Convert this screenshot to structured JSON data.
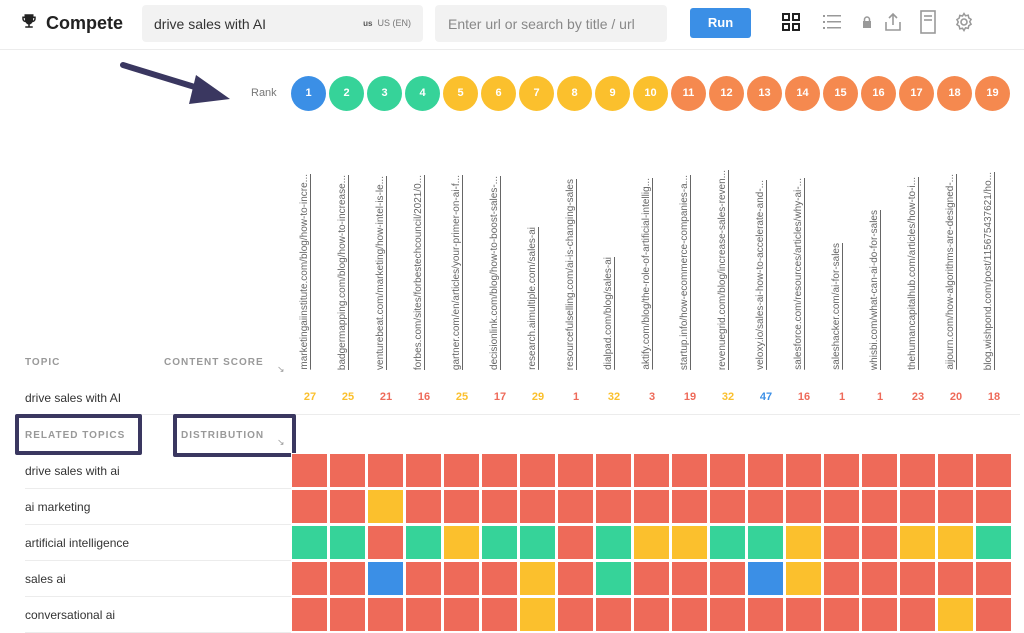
{
  "app": {
    "title": "Compete"
  },
  "search": {
    "keyword": "drive sales with AI",
    "locale": "US (EN)",
    "url_placeholder": "Enter url or search by title / url",
    "run_label": "Run"
  },
  "icons": [
    "trophy-icon",
    "grid-view-icon",
    "list-view-icon",
    "lock-icon",
    "share-icon",
    "document-icon",
    "settings-icon"
  ],
  "colors": {
    "blue": "#3b8fe6",
    "green": "#36d399",
    "yellow": "#fbc02d",
    "orange": "#f5894f",
    "red": "#ee6a59"
  },
  "rank_label": "Rank",
  "ranks": [
    {
      "rank": "1",
      "color": "blue",
      "url": "marketingaiinstitute.com/blog/how-to-incre...",
      "score": "27",
      "score_color": "yellow"
    },
    {
      "rank": "2",
      "color": "green",
      "url": "badgermapping.com/blog/how-to-increase...",
      "score": "25",
      "score_color": "yellow"
    },
    {
      "rank": "3",
      "color": "green",
      "url": "venturebeat.com/marketing/how-intel-is-le...",
      "score": "21",
      "score_color": "red"
    },
    {
      "rank": "4",
      "color": "green",
      "url": "forbes.com/sites/forbestechcouncil/2021/0...",
      "score": "16",
      "score_color": "red"
    },
    {
      "rank": "5",
      "color": "yellow",
      "url": "gartner.com/en/articles/your-primer-on-ai-f...",
      "score": "25",
      "score_color": "yellow"
    },
    {
      "rank": "6",
      "color": "yellow",
      "url": "decisionlink.com/blog/how-to-boost-sales-...",
      "score": "17",
      "score_color": "red"
    },
    {
      "rank": "7",
      "color": "yellow",
      "url": "research.aimultiple.com/sales-ai",
      "score": "29",
      "score_color": "yellow"
    },
    {
      "rank": "8",
      "color": "yellow",
      "url": "resourcefulselling.com/ai-is-changing-sales",
      "score": "1",
      "score_color": "red"
    },
    {
      "rank": "9",
      "color": "yellow",
      "url": "dialpad.com/blog/sales-ai",
      "score": "32",
      "score_color": "yellow"
    },
    {
      "rank": "10",
      "color": "yellow",
      "url": "aktify.com/blog/the-role-of-artificial-intellig...",
      "score": "3",
      "score_color": "red"
    },
    {
      "rank": "11",
      "color": "orange",
      "url": "startup.info/how-ecommerce-companies-a...",
      "score": "19",
      "score_color": "red"
    },
    {
      "rank": "12",
      "color": "orange",
      "url": "revenuegrid.com/blog/increase-sales-reven...",
      "score": "32",
      "score_color": "yellow"
    },
    {
      "rank": "13",
      "color": "orange",
      "url": "veloxy.io/sales-ai-how-to-accelerate-and-...",
      "score": "47",
      "score_color": "blue"
    },
    {
      "rank": "14",
      "color": "orange",
      "url": "salesforce.com/resources/articles/why-ai-...",
      "score": "16",
      "score_color": "red"
    },
    {
      "rank": "15",
      "color": "orange",
      "url": "saleshacker.com/ai-for-sales",
      "score": "1",
      "score_color": "red"
    },
    {
      "rank": "16",
      "color": "orange",
      "url": "whisbi.com/what-can-ai-do-for-sales",
      "score": "1",
      "score_color": "red"
    },
    {
      "rank": "17",
      "color": "orange",
      "url": "thehumancapitalhub.com/articles/how-to-i...",
      "score": "23",
      "score_color": "red"
    },
    {
      "rank": "18",
      "color": "orange",
      "url": "aijourn.com/how-algorithms-are-designed-...",
      "score": "20",
      "score_color": "red"
    },
    {
      "rank": "19",
      "color": "orange",
      "url": "blog.wishpond.com/post/115675437621/ho...",
      "score": "18",
      "score_color": "red"
    }
  ],
  "table": {
    "topic_header": "TOPIC",
    "content_score_header": "CONTENT SCORE",
    "keyword_row_label": "drive sales with AI",
    "related_topics_header": "RELATED TOPICS",
    "distribution_header": "DISTRIBUTION",
    "sort_glyph": "↘"
  },
  "related_topics": [
    {
      "label": "drive sales with ai",
      "cells": [
        "r",
        "r",
        "r",
        "r",
        "r",
        "r",
        "r",
        "r",
        "r",
        "r",
        "r",
        "r",
        "r",
        "r",
        "r",
        "r",
        "r",
        "r",
        "r"
      ]
    },
    {
      "label": "ai marketing",
      "cells": [
        "r",
        "r",
        "y",
        "r",
        "r",
        "r",
        "r",
        "r",
        "r",
        "r",
        "r",
        "r",
        "r",
        "r",
        "r",
        "r",
        "r",
        "r",
        "r"
      ]
    },
    {
      "label": "artificial intelligence",
      "cells": [
        "g",
        "g",
        "r",
        "g",
        "y",
        "g",
        "g",
        "r",
        "g",
        "y",
        "y",
        "g",
        "g",
        "y",
        "r",
        "r",
        "y",
        "y",
        "g"
      ]
    },
    {
      "label": "sales ai",
      "cells": [
        "r",
        "r",
        "b",
        "r",
        "r",
        "r",
        "y",
        "r",
        "g",
        "r",
        "r",
        "r",
        "b",
        "y",
        "r",
        "r",
        "r",
        "r",
        "r"
      ]
    },
    {
      "label": "conversational ai",
      "cells": [
        "r",
        "r",
        "r",
        "r",
        "r",
        "r",
        "y",
        "r",
        "r",
        "r",
        "r",
        "r",
        "r",
        "r",
        "r",
        "r",
        "r",
        "y",
        "r"
      ]
    }
  ]
}
